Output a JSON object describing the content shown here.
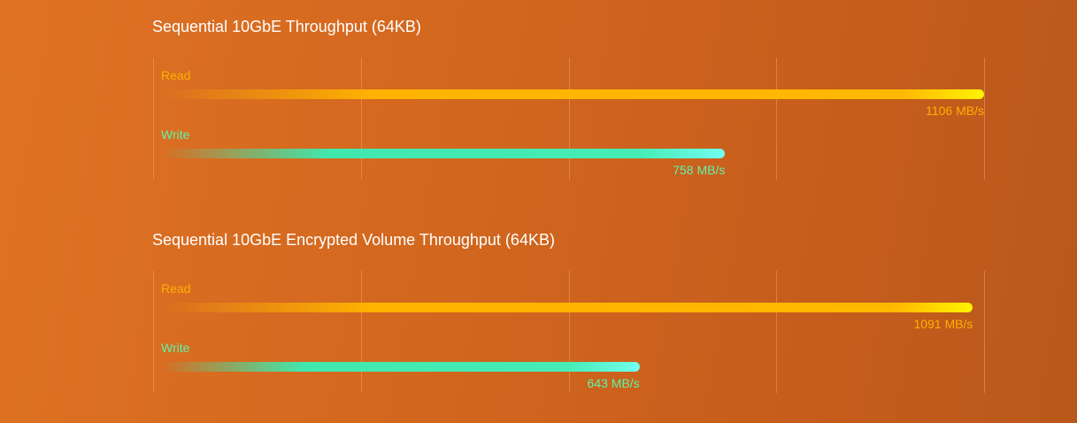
{
  "chart_data": [
    {
      "type": "bar",
      "title": "Sequential 10GbE Throughput (64KB)",
      "categories": [
        "Read",
        "Write"
      ],
      "values": [
        1106,
        758
      ],
      "value_labels": [
        "1106 MB/s",
        "758 MB/s"
      ],
      "unit": "MB/s",
      "xlim": [
        0,
        1106
      ],
      "grid": true,
      "orientation": "horizontal"
    },
    {
      "type": "bar",
      "title": "Sequential 10GbE Encrypted Volume Throughput (64KB)",
      "categories": [
        "Read",
        "Write"
      ],
      "values": [
        1091,
        643
      ],
      "value_labels": [
        "1091 MB/s",
        "643 MB/s"
      ],
      "unit": "MB/s",
      "xlim": [
        0,
        1106
      ],
      "grid": true,
      "orientation": "horizontal"
    }
  ],
  "colors": {
    "read": "#ffb000",
    "write": "#5ff5a6",
    "background": "#d1661e"
  }
}
